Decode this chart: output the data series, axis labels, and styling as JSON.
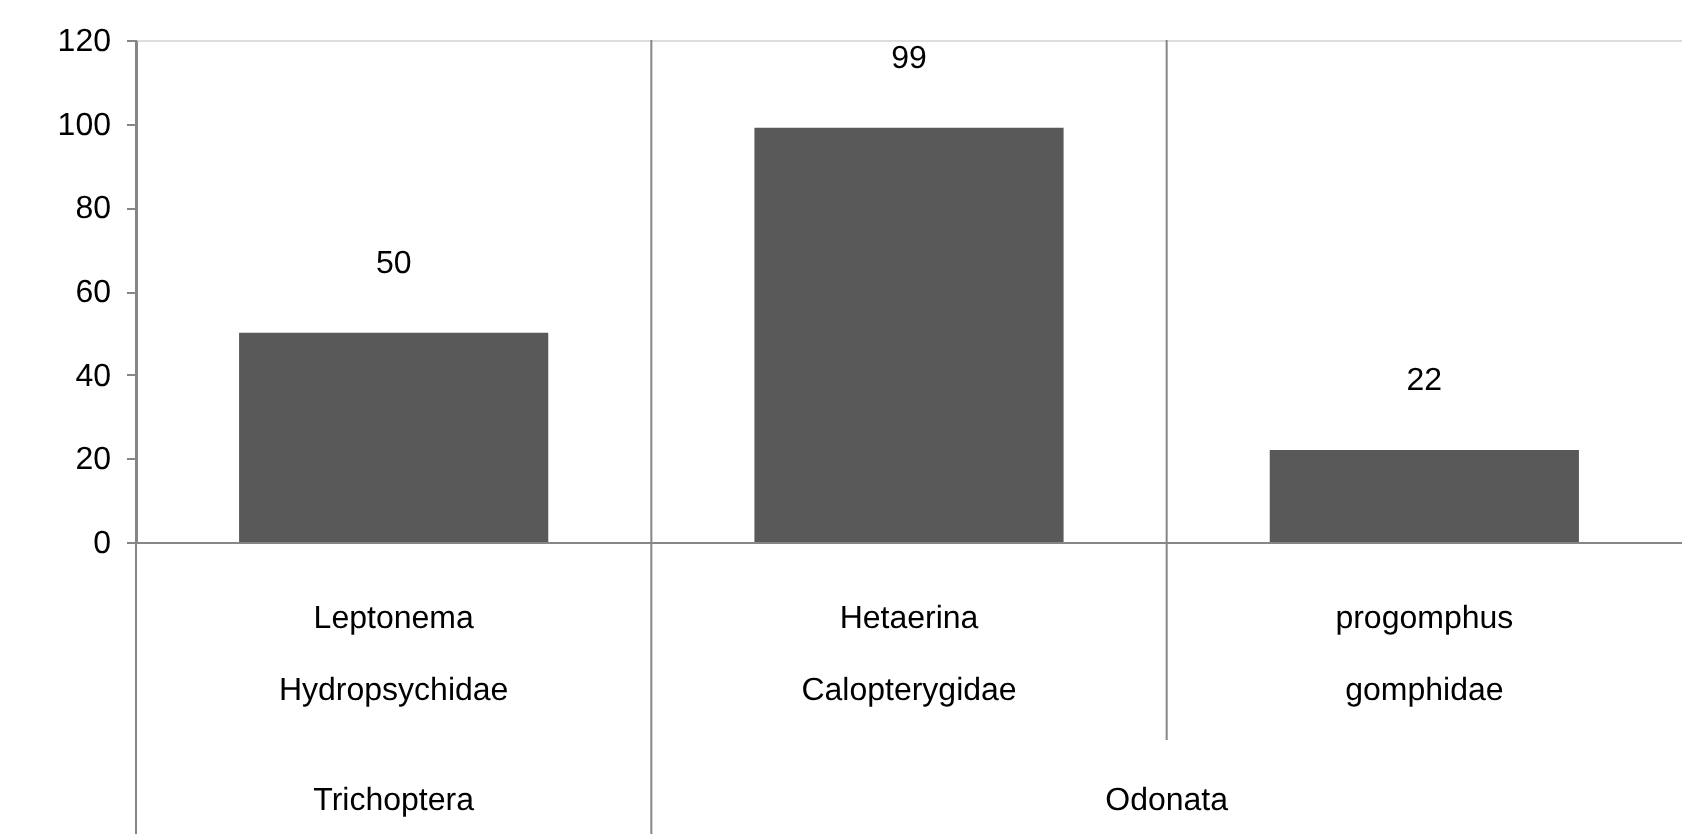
{
  "chart_data": {
    "type": "bar",
    "categories": [
      "Leptonema",
      "Hetaerina",
      "progomphus"
    ],
    "values": [
      50,
      99,
      22
    ],
    "color": "#595959",
    "ylim": [
      0,
      120
    ],
    "yticks": [
      0,
      20,
      40,
      60,
      80,
      100,
      120
    ],
    "grid": false,
    "data_labels": true,
    "annotations": [
      "Hydropsychidae",
      "Calopterygidae",
      "gomphidae",
      "Trichoptera",
      "Odonata"
    ]
  }
}
